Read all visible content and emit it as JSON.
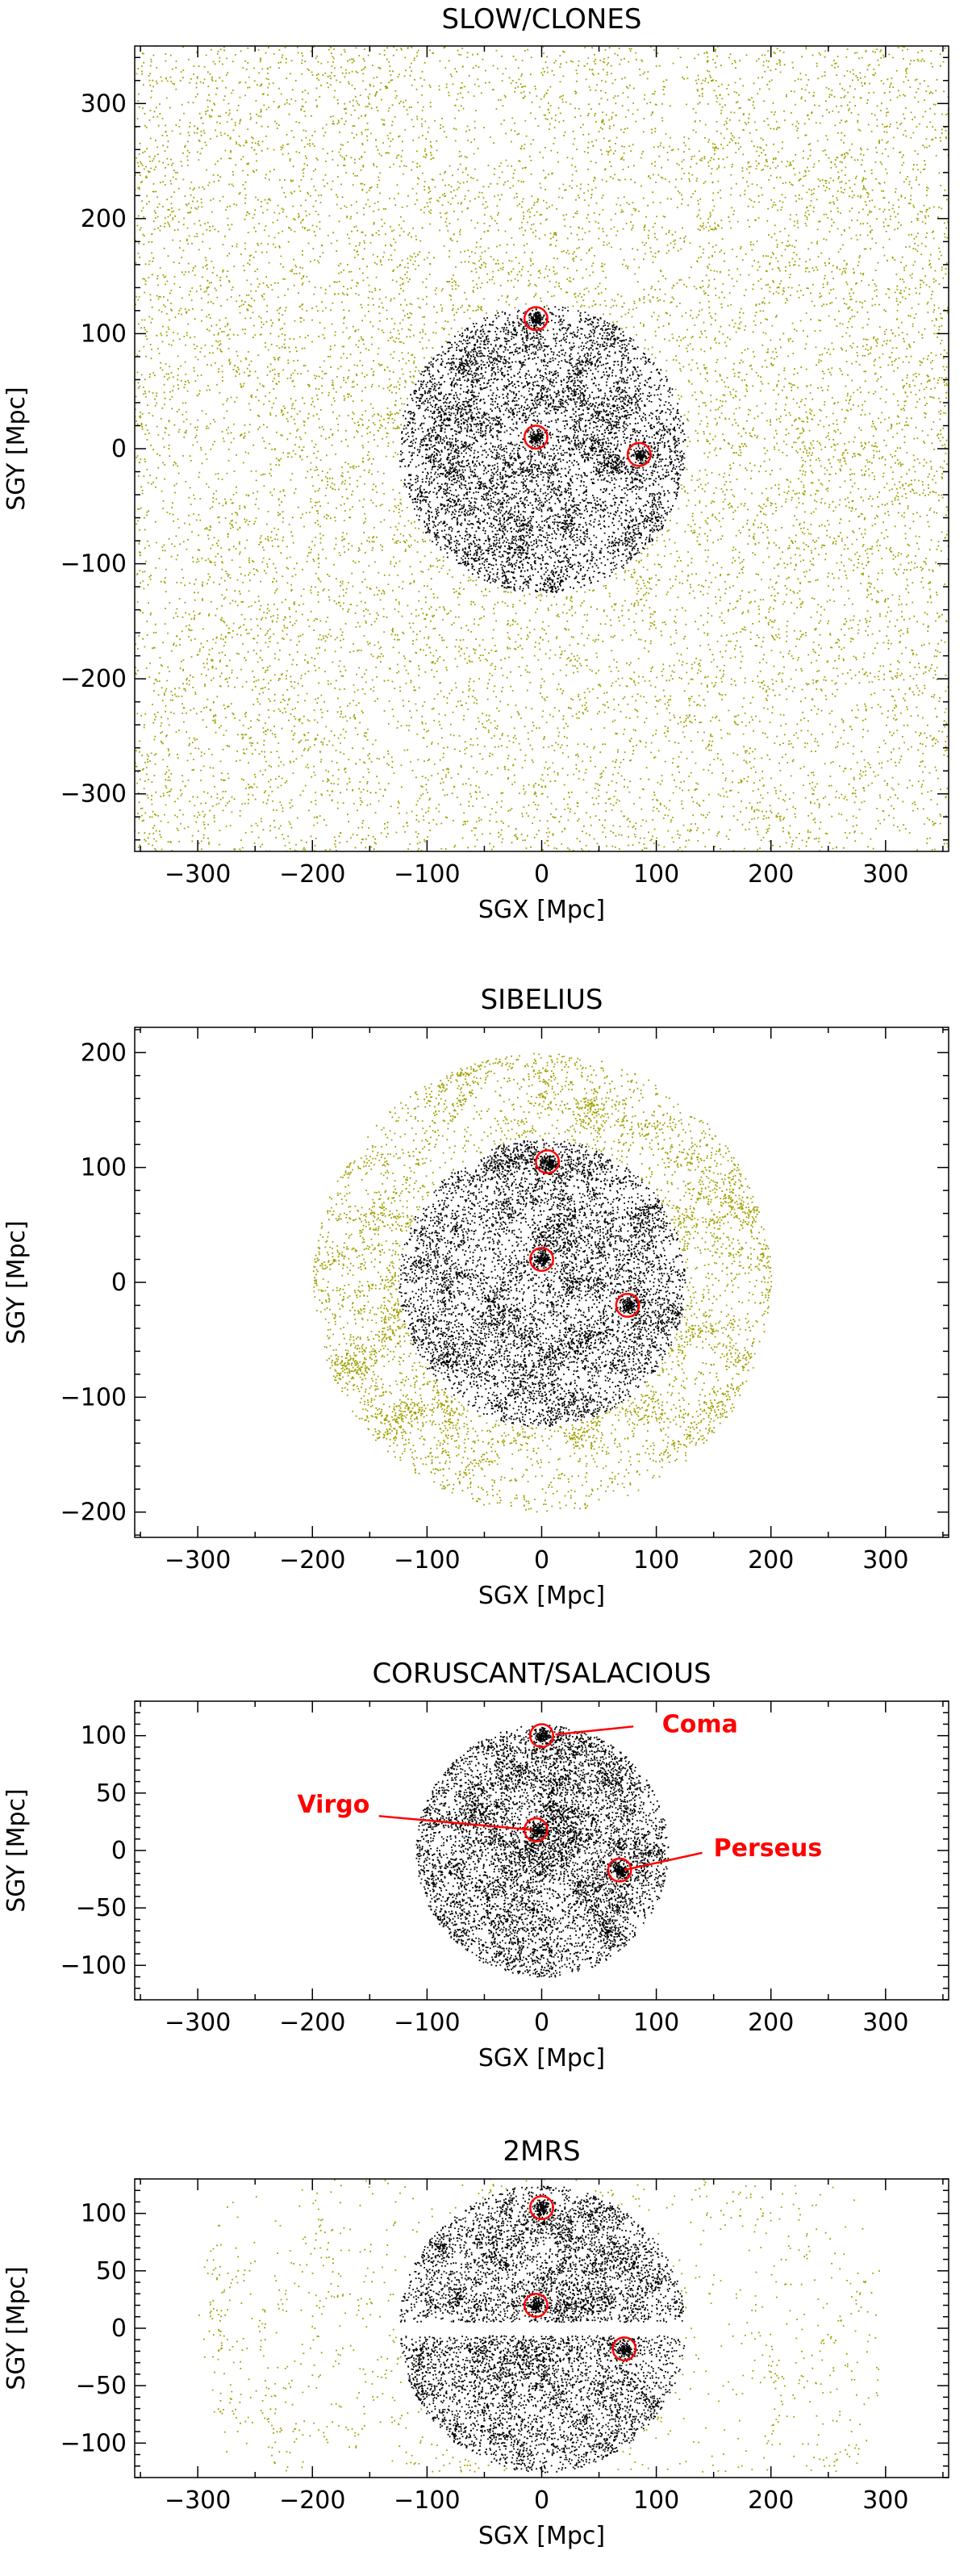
{
  "chart_data": [
    {
      "type": "scatter",
      "title": "SLOW/CLONES",
      "xlabel": "SGX [Mpc]",
      "ylabel": "SGY [Mpc]",
      "xlim": [
        -355,
        355
      ],
      "ylim": [
        -350,
        350
      ],
      "xticks": [
        -300,
        -200,
        -100,
        0,
        100,
        200,
        300
      ],
      "yticks": [
        -300,
        -200,
        -100,
        0,
        100,
        200,
        300
      ],
      "series": [
        {
          "color": "#a0a000",
          "distribution": "full box, filamentary cosmic web",
          "extent": "full"
        },
        {
          "color": "#000000",
          "distribution": "sphere",
          "radius": 125
        }
      ],
      "markers": [
        {
          "x": -5,
          "y": 113,
          "radius": 10,
          "color": "#ff0000"
        },
        {
          "x": -5,
          "y": 10,
          "radius": 10,
          "color": "#ff0000"
        },
        {
          "x": 85,
          "y": -5,
          "radius": 10,
          "color": "#ff0000"
        }
      ],
      "annotations": []
    },
    {
      "type": "scatter",
      "title": "SIBELIUS",
      "xlabel": "SGX [Mpc]",
      "ylabel": "SGY [Mpc]",
      "xlim": [
        -355,
        355
      ],
      "ylim": [
        -222,
        222
      ],
      "xticks": [
        -300,
        -200,
        -100,
        0,
        100,
        200,
        300
      ],
      "yticks": [
        -200,
        -100,
        0,
        100,
        200
      ],
      "series": [
        {
          "color": "#a0a000",
          "distribution": "shell",
          "radius_inner": 125,
          "radius_outer": 200
        },
        {
          "color": "#000000",
          "distribution": "sphere",
          "radius": 125
        }
      ],
      "markers": [
        {
          "x": 5,
          "y": 105,
          "radius": 10,
          "color": "#ff0000"
        },
        {
          "x": 0,
          "y": 20,
          "radius": 10,
          "color": "#ff0000"
        },
        {
          "x": 75,
          "y": -20,
          "radius": 10,
          "color": "#ff0000"
        }
      ],
      "annotations": []
    },
    {
      "type": "scatter",
      "title": "CORUSCANT/SALACIOUS",
      "xlabel": "SGX [Mpc]",
      "ylabel": "SGY [Mpc]",
      "xlim": [
        -355,
        355
      ],
      "ylim": [
        -130,
        130
      ],
      "xticks": [
        -300,
        -200,
        -100,
        0,
        100,
        200,
        300
      ],
      "yticks": [
        -100,
        -50,
        0,
        50,
        100
      ],
      "series": [
        {
          "color": "#000000",
          "distribution": "sphere",
          "radius": 110
        }
      ],
      "markers": [
        {
          "x": 0,
          "y": 100,
          "radius": 10,
          "color": "#ff0000"
        },
        {
          "x": -5,
          "y": 18,
          "radius": 10,
          "color": "#ff0000"
        },
        {
          "x": 68,
          "y": -17,
          "radius": 10,
          "color": "#ff0000"
        }
      ],
      "annotations": [
        {
          "text": "Coma",
          "tx": 105,
          "ty": 103,
          "x1": 12,
          "y1": 101,
          "x2": 80,
          "y2": 108
        },
        {
          "text": "Virgo",
          "tx": -150,
          "ty": 33,
          "x1": -142,
          "y1": 30,
          "x2": -8,
          "y2": 18
        },
        {
          "text": "Perseus",
          "tx": 150,
          "ty": -5,
          "x1": 72,
          "y1": -17,
          "x2": 140,
          "y2": -2
        }
      ]
    },
    {
      "type": "scatter",
      "title": "2MRS",
      "xlabel": "SGX [Mpc]",
      "ylabel": "SGY [Mpc]",
      "xlim": [
        -355,
        355
      ],
      "ylim": [
        -130,
        130
      ],
      "xticks": [
        -300,
        -200,
        -100,
        0,
        100,
        200,
        300
      ],
      "yticks": [
        -100,
        -50,
        0,
        50,
        100
      ],
      "series": [
        {
          "color": "#a0a000",
          "distribution": "sparse outskirts",
          "radius_inner": 125,
          "radius_outer": 300
        },
        {
          "color": "#000000",
          "distribution": "sphere with zone of avoidance gap",
          "radius": 125
        }
      ],
      "markers": [
        {
          "x": 0,
          "y": 105,
          "radius": 10,
          "color": "#ff0000"
        },
        {
          "x": -5,
          "y": 20,
          "radius": 10,
          "color": "#ff0000"
        },
        {
          "x": 72,
          "y": -18,
          "radius": 10,
          "color": "#ff0000"
        }
      ],
      "annotations": []
    }
  ]
}
